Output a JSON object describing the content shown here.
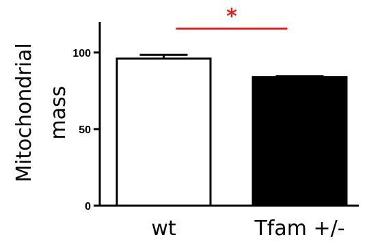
{
  "chart_data": {
    "type": "bar",
    "title": "",
    "xlabel": "",
    "ylabel_lines": [
      "Mitochondrial",
      "mass"
    ],
    "categories": [
      "wt",
      "Tfam +/-"
    ],
    "values": [
      96,
      84
    ],
    "errors": [
      2.5,
      0.5
    ],
    "bar_fill": [
      "#ffffff",
      "#000000"
    ],
    "ylim": [
      0,
      120
    ],
    "yticks": [
      0,
      50,
      100
    ],
    "ytick_labels": [
      "0",
      "50",
      "100"
    ],
    "significance": {
      "label": "*",
      "color": "#e02020",
      "between": [
        0,
        1
      ]
    }
  }
}
